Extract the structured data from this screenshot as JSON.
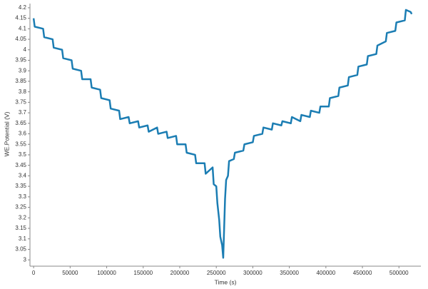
{
  "chart_data": {
    "type": "line",
    "x_label": "Time (s)",
    "y_label": "WE.Potential (V)",
    "xlim": [
      -5000,
      530000
    ],
    "ylim": [
      2.97,
      4.22
    ],
    "xticks": [
      0,
      50000,
      100000,
      150000,
      200000,
      250000,
      300000,
      350000,
      400000,
      450000,
      500000
    ],
    "yticks": [
      3,
      3.05,
      3.1,
      3.15,
      3.2,
      3.25,
      3.3,
      3.35,
      3.4,
      3.45,
      3.5,
      3.55,
      3.6,
      3.65,
      3.7,
      3.75,
      3.8,
      3.85,
      3.9,
      3.95,
      4,
      4.05,
      4.1,
      4.15,
      4.2
    ],
    "grid": false,
    "x": [
      0,
      1500,
      13000,
      14500,
      26000,
      27500,
      39000,
      40500,
      52000,
      53500,
      65000,
      66500,
      78000,
      79500,
      91000,
      92500,
      104000,
      105500,
      117000,
      118500,
      130000,
      131500,
      143000,
      144500,
      156000,
      157500,
      169000,
      170500,
      182000,
      183500,
      195000,
      196500,
      208000,
      209500,
      221000,
      222500,
      234000,
      235500,
      245000,
      246500,
      250000,
      251500,
      254000,
      255500,
      258000,
      259500,
      262000,
      263500,
      266000,
      267500,
      274000,
      275500,
      287000,
      288500,
      300000,
      301500,
      313000,
      314500,
      326000,
      327500,
      339000,
      340500,
      352000,
      353500,
      365000,
      366500,
      378000,
      379500,
      391000,
      392500,
      404000,
      405500,
      417000,
      418500,
      430000,
      431500,
      443000,
      444500,
      456000,
      457500,
      469000,
      470500,
      482000,
      483500,
      495000,
      496500,
      508000,
      509500,
      516000,
      517500
    ],
    "series": [
      {
        "name": "WE.Potential",
        "color": "#1b7db3",
        "values": [
          4.15,
          4.11,
          4.1,
          4.06,
          4.05,
          4.01,
          4.0,
          3.96,
          3.95,
          3.91,
          3.9,
          3.86,
          3.86,
          3.82,
          3.81,
          3.77,
          3.76,
          3.72,
          3.71,
          3.67,
          3.68,
          3.65,
          3.66,
          3.63,
          3.64,
          3.61,
          3.63,
          3.6,
          3.61,
          3.58,
          3.59,
          3.55,
          3.55,
          3.51,
          3.5,
          3.46,
          3.46,
          3.41,
          3.44,
          3.36,
          3.35,
          3.27,
          3.19,
          3.11,
          3.07,
          3.01,
          3.29,
          3.38,
          3.4,
          3.47,
          3.48,
          3.51,
          3.52,
          3.55,
          3.56,
          3.59,
          3.6,
          3.63,
          3.62,
          3.65,
          3.64,
          3.66,
          3.65,
          3.68,
          3.66,
          3.69,
          3.68,
          3.71,
          3.7,
          3.73,
          3.73,
          3.77,
          3.78,
          3.82,
          3.83,
          3.87,
          3.88,
          3.92,
          3.93,
          3.97,
          3.98,
          4.02,
          4.04,
          4.08,
          4.09,
          4.13,
          4.14,
          4.19,
          4.18,
          4.17
        ]
      }
    ]
  }
}
